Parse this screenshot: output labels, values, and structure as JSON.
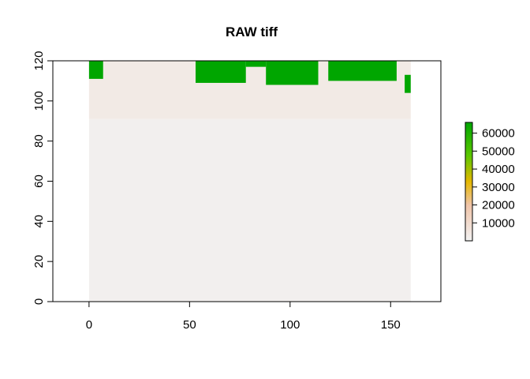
{
  "chart_data": {
    "type": "heatmap",
    "title": "RAW tiff",
    "xlabel": "",
    "ylabel": "",
    "xlim": [
      -18,
      175
    ],
    "ylim": [
      0,
      120
    ],
    "x_ticks": [
      0,
      50,
      100,
      150
    ],
    "y_ticks": [
      0,
      20,
      40,
      60,
      80,
      100,
      120
    ],
    "grid": false,
    "raster_extent": {
      "x": [
        0,
        160
      ],
      "y": [
        0,
        120
      ]
    },
    "background_values": {
      "lower_region": 1200,
      "upper_band": 3500,
      "upper_band_y_range": [
        91,
        120
      ]
    },
    "high_value": 65535,
    "high_value_regions": [
      {
        "x": [
          0,
          7
        ],
        "y": [
          111,
          120
        ]
      },
      {
        "x": [
          53,
          78
        ],
        "y": [
          109,
          120
        ]
      },
      {
        "x": [
          78,
          88
        ],
        "y": [
          117,
          120
        ]
      },
      {
        "x": [
          88,
          114
        ],
        "y": [
          108,
          120
        ]
      },
      {
        "x": [
          119,
          153
        ],
        "y": [
          110,
          120
        ]
      },
      {
        "x": [
          157,
          160
        ],
        "y": [
          104,
          113
        ]
      }
    ],
    "colorbar": {
      "position": "right",
      "min": 0,
      "max": 65535,
      "ticks": [
        10000,
        20000,
        30000,
        40000,
        50000,
        60000
      ],
      "tick_labels": [
        "10000",
        "20000",
        "30000",
        "40000",
        "50000",
        "60000"
      ],
      "colors": [
        "#f2f2f2",
        "#f0c4a9",
        "#e5b800",
        "#5bc700",
        "#00a600"
      ]
    }
  }
}
